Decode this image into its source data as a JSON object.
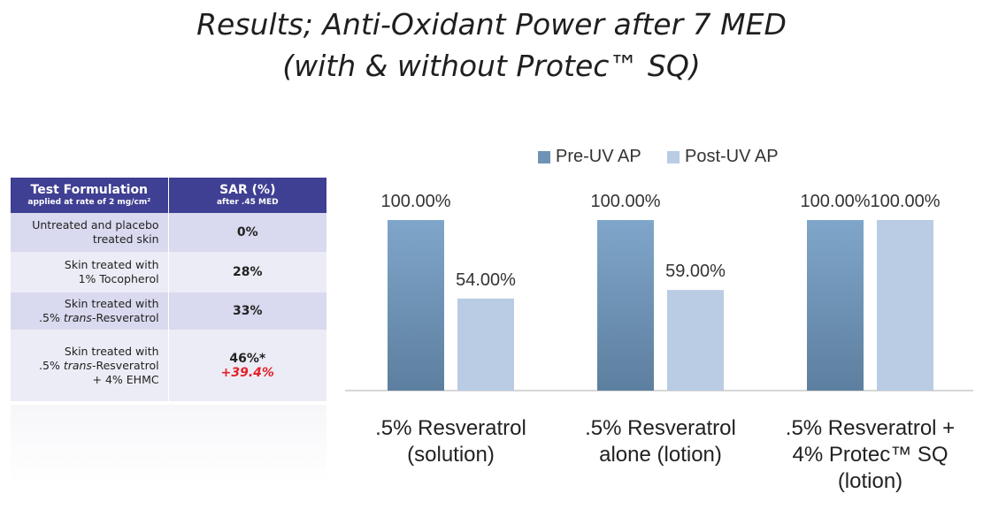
{
  "title_line1": "Results; Anti-Oxidant Power after 7 MED",
  "title_line2": "(with & without Protec™ SQ)",
  "table": {
    "header_col1": "Test Formulation",
    "header_col1_sub": "applied at rate of 2 mg/cm²",
    "header_col2": "SAR (%)",
    "header_col2_sub": "after .45 MED",
    "rows": [
      {
        "line1": "Untreated and placebo",
        "line2": "treated skin",
        "value": "0%"
      },
      {
        "line1": "Skin treated with",
        "line2": "1% Tocopherol",
        "value": "28%"
      },
      {
        "line1": "Skin treated with",
        "line2_prefix": ".5% ",
        "line2_italic": "trans",
        "line2_suffix": "-Resveratrol",
        "value": "33%"
      },
      {
        "line1": "Skin treated with",
        "line2_prefix": ".5% ",
        "line2_italic": "trans",
        "line2_suffix": "-Resveratrol",
        "line3": "+ 4% EHMC",
        "value": "46%*",
        "value2": "+39.4%"
      }
    ]
  },
  "colors": {
    "pre": "#6f93b5",
    "post": "#b9cce4",
    "table_header": "#3f3f93",
    "highlight": "#e2212a"
  },
  "chart_data": {
    "type": "bar",
    "categories": [
      ".5% Resveratrol (solution)",
      ".5% Resveratrol alone (lotion)",
      ".5% Resveratrol + 4% Protec™ SQ (lotion)"
    ],
    "category_lines": [
      [
        ".5% Resveratrol",
        "(solution)"
      ],
      [
        ".5% Resveratrol",
        "alone (lotion)"
      ],
      [
        ".5% Resveratrol +",
        "4% Protec™ SQ",
        "(lotion)"
      ]
    ],
    "series": [
      {
        "name": "Pre-UV AP",
        "values": [
          100,
          100,
          100
        ],
        "labels": [
          "100.00%",
          "100.00%",
          "100.00%"
        ]
      },
      {
        "name": "Post-UV AP",
        "values": [
          54,
          59,
          100
        ],
        "labels": [
          "54.00%",
          "59.00%",
          "100.00%"
        ]
      }
    ],
    "ylim": [
      0,
      100
    ],
    "grid": false,
    "legend": "top"
  }
}
